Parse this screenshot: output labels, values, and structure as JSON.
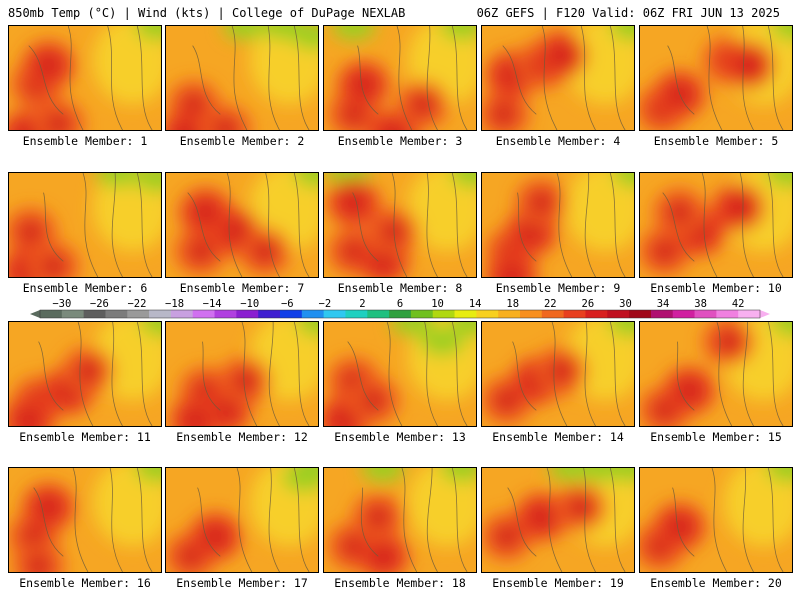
{
  "header": {
    "left": "850mb Temp (°C) | Wind (kts) | College of DuPage NEXLAB",
    "right": "06Z GEFS | F120 Valid: 06Z FRI JUN 13 2025"
  },
  "panels": [
    {
      "label": "Ensemble Member: 1"
    },
    {
      "label": "Ensemble Member: 2"
    },
    {
      "label": "Ensemble Member: 3"
    },
    {
      "label": "Ensemble Member: 4"
    },
    {
      "label": "Ensemble Member: 5"
    },
    {
      "label": "Ensemble Member: 6"
    },
    {
      "label": "Ensemble Member: 7"
    },
    {
      "label": "Ensemble Member: 8"
    },
    {
      "label": "Ensemble Member: 9"
    },
    {
      "label": "Ensemble Member: 10"
    },
    {
      "label": "Ensemble Member: 11"
    },
    {
      "label": "Ensemble Member: 12"
    },
    {
      "label": "Ensemble Member: 13"
    },
    {
      "label": "Ensemble Member: 14"
    },
    {
      "label": "Ensemble Member: 15"
    },
    {
      "label": "Ensemble Member: 16"
    },
    {
      "label": "Ensemble Member: 17"
    },
    {
      "label": "Ensemble Member: 18"
    },
    {
      "label": "Ensemble Member: 19"
    },
    {
      "label": "Ensemble Member: 20"
    }
  ],
  "colorbar": {
    "ticks": [
      "−30",
      "−26",
      "−22",
      "−18",
      "−14",
      "−10",
      "−6",
      "−2",
      "2",
      "6",
      "10",
      "14",
      "18",
      "22",
      "26",
      "30",
      "34",
      "38",
      "42"
    ],
    "colors": [
      "#5a6b5e",
      "#7a8a7c",
      "#5e5e5e",
      "#7c7c7c",
      "#9a9a9a",
      "#b8b8c8",
      "#c8a0e0",
      "#d070f0",
      "#b040e0",
      "#8a20d0",
      "#4020d0",
      "#1040e8",
      "#2090f0",
      "#30c8f0",
      "#20d0c0",
      "#20c080",
      "#30a040",
      "#70c020",
      "#b0d810",
      "#e8ec10",
      "#f8d020",
      "#f8b020",
      "#f89020",
      "#f06820",
      "#e84020",
      "#d82020",
      "#c01020",
      "#a00818",
      "#b01070",
      "#d020a0",
      "#e050c0",
      "#f080e0",
      "#f8b0f0"
    ]
  },
  "maps": [
    {
      "heat": [
        [
          28,
          60
        ],
        [
          18,
          110
        ],
        [
          50,
          100
        ],
        [
          40,
          40
        ]
      ],
      "green": [
        [
          150,
          0
        ]
      ]
    },
    {
      "heat": [
        [
          28,
          80
        ],
        [
          20,
          110
        ],
        [
          60,
          105
        ]
      ],
      "green": [
        [
          120,
          0
        ],
        [
          80,
          0
        ],
        [
          150,
          10
        ]
      ]
    },
    {
      "heat": [
        [
          30,
          90
        ],
        [
          70,
          110
        ],
        [
          100,
          80
        ],
        [
          40,
          60
        ]
      ],
      "green": [
        [
          140,
          0
        ],
        [
          30,
          0
        ]
      ]
    },
    {
      "heat": [
        [
          22,
          90
        ],
        [
          30,
          50
        ],
        [
          60,
          40
        ],
        [
          80,
          30
        ]
      ],
      "green": [
        [
          152,
          0
        ]
      ]
    },
    {
      "heat": [
        [
          22,
          85
        ],
        [
          40,
          70
        ],
        [
          90,
          35
        ],
        [
          110,
          40
        ]
      ],
      "green": [
        [
          155,
          0
        ]
      ]
    },
    {
      "heat": [
        [
          22,
          60
        ],
        [
          18,
          100
        ],
        [
          45,
          95
        ]
      ],
      "green": [
        [
          110,
          0
        ],
        [
          150,
          5
        ]
      ]
    },
    {
      "heat": [
        [
          35,
          80
        ],
        [
          70,
          60
        ],
        [
          100,
          80
        ],
        [
          40,
          40
        ]
      ],
      "green": [
        [
          152,
          0
        ]
      ]
    },
    {
      "heat": [
        [
          30,
          80
        ],
        [
          60,
          90
        ],
        [
          70,
          60
        ],
        [
          30,
          30
        ]
      ],
      "green": [
        [
          25,
          0
        ],
        [
          150,
          0
        ]
      ]
    },
    {
      "heat": [
        [
          30,
          80
        ],
        [
          50,
          60
        ],
        [
          60,
          30
        ],
        [
          30,
          105
        ]
      ],
      "green": [
        [
          155,
          0
        ]
      ]
    },
    {
      "heat": [
        [
          25,
          80
        ],
        [
          60,
          60
        ],
        [
          40,
          40
        ],
        [
          100,
          35
        ]
      ],
      "green": [
        [
          150,
          0
        ]
      ]
    },
    {
      "heat": [
        [
          30,
          80
        ],
        [
          60,
          70
        ],
        [
          80,
          50
        ],
        [
          20,
          100
        ]
      ],
      "green": [
        [
          155,
          0
        ]
      ]
    },
    {
      "heat": [
        [
          40,
          70
        ],
        [
          60,
          90
        ],
        [
          80,
          60
        ],
        [
          30,
          100
        ]
      ],
      "green": [
        [
          155,
          0
        ]
      ]
    },
    {
      "heat": [
        [
          30,
          60
        ],
        [
          20,
          100
        ],
        [
          50,
          80
        ]
      ],
      "green": [
        [
          90,
          0
        ],
        [
          120,
          20
        ],
        [
          150,
          0
        ]
      ]
    },
    {
      "heat": [
        [
          25,
          80
        ],
        [
          55,
          60
        ],
        [
          80,
          50
        ]
      ],
      "green": [
        [
          150,
          0
        ]
      ]
    },
    {
      "heat": [
        [
          25,
          90
        ],
        [
          50,
          70
        ],
        [
          90,
          20
        ]
      ],
      "green": [
        [
          155,
          0
        ]
      ]
    },
    {
      "heat": [
        [
          25,
          70
        ],
        [
          40,
          40
        ],
        [
          30,
          100
        ]
      ],
      "green": [
        [
          150,
          0
        ]
      ]
    },
    {
      "heat": [
        [
          25,
          90
        ],
        [
          50,
          70
        ]
      ],
      "green": [
        [
          150,
          0
        ],
        [
          140,
          10
        ]
      ]
    },
    {
      "heat": [
        [
          30,
          80
        ],
        [
          60,
          90
        ],
        [
          55,
          50
        ]
      ],
      "green": [
        [
          140,
          0
        ],
        [
          60,
          0
        ]
      ]
    },
    {
      "heat": [
        [
          25,
          70
        ],
        [
          60,
          50
        ],
        [
          100,
          40
        ]
      ],
      "green": [
        [
          120,
          0
        ],
        [
          150,
          0
        ],
        [
          90,
          0
        ]
      ]
    },
    {
      "heat": [
        [
          20,
          80
        ],
        [
          40,
          60
        ]
      ],
      "green": [
        [
          150,
          0
        ]
      ]
    }
  ]
}
